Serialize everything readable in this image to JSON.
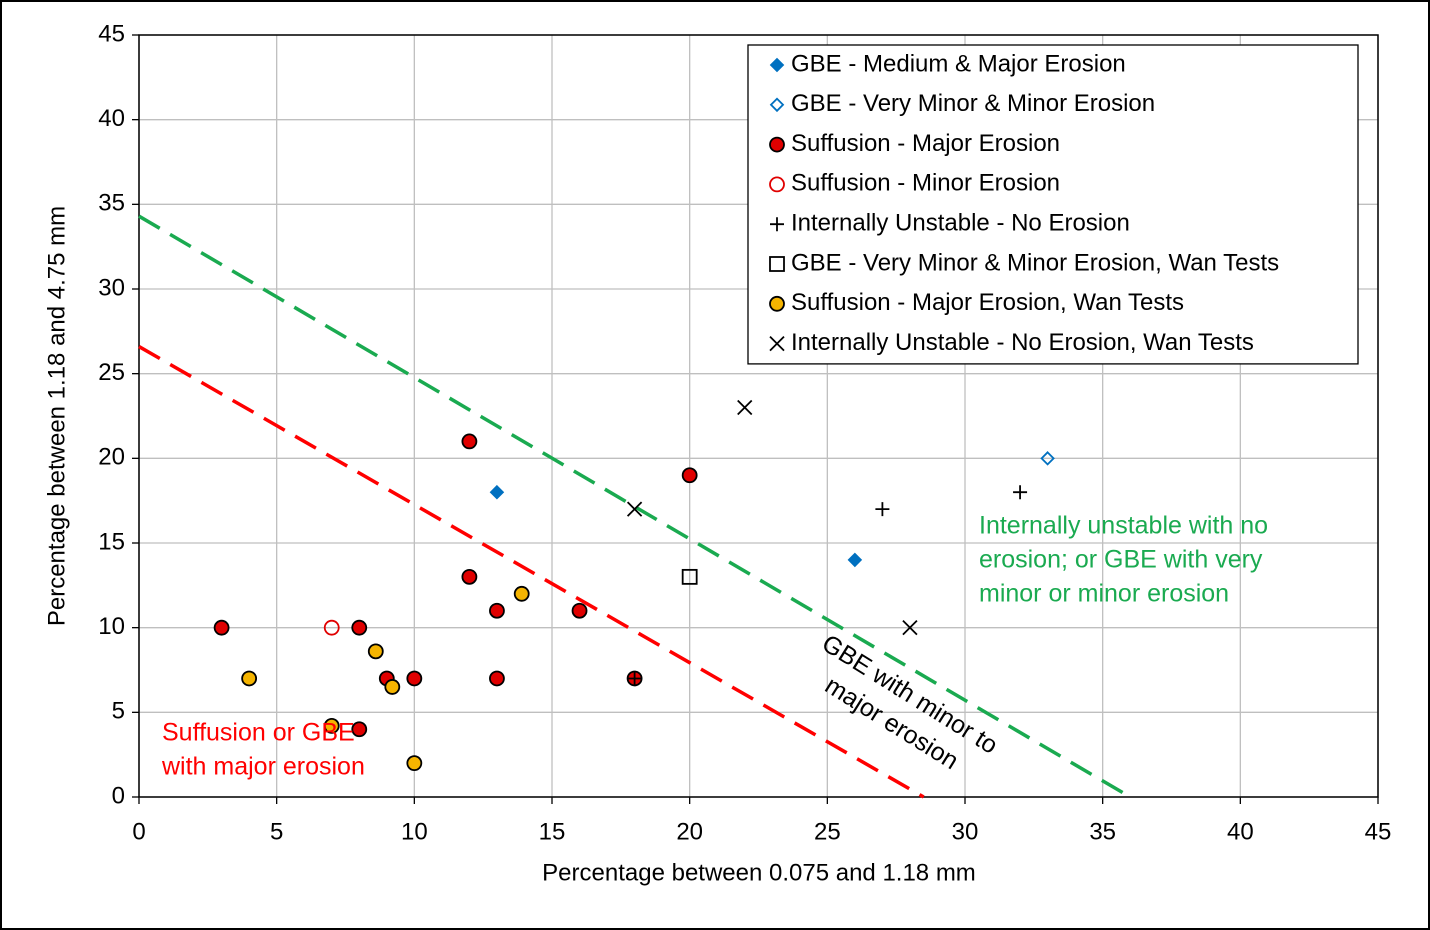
{
  "chart_data": {
    "type": "scatter",
    "x_label": "Percentage between 0.075 and 1.18 mm",
    "y_label": "Percentage between 1.18 and 4.75 mm",
    "xlim": [
      0,
      45
    ],
    "ylim": [
      0,
      45
    ],
    "xticks": [
      0,
      5,
      10,
      15,
      20,
      25,
      30,
      35,
      40,
      45
    ],
    "yticks": [
      0,
      5,
      10,
      15,
      20,
      25,
      30,
      35,
      40,
      45
    ],
    "grid": true,
    "legend": "upper right",
    "series": [
      {
        "name": "GBE - Medium & Major Erosion",
        "marker": "diamond",
        "color": "#0070c0",
        "fill": "#0070c0",
        "x": [
          13,
          26
        ],
        "y": [
          18,
          14
        ]
      },
      {
        "name": "GBE - Very Minor & Minor Erosion",
        "marker": "diamond",
        "color": "#0070c0",
        "fill": "none",
        "x": [
          33
        ],
        "y": [
          20
        ]
      },
      {
        "name": "Suffusion - Major Erosion",
        "marker": "circle",
        "color": "#000000",
        "fill": "#e00000",
        "x": [
          3,
          8,
          9,
          10,
          12,
          12,
          13,
          13,
          16,
          18,
          20,
          8
        ],
        "y": [
          10,
          10,
          7,
          7,
          21,
          13,
          11,
          7,
          11,
          7,
          19,
          4
        ]
      },
      {
        "name": "Suffusion - Minor Erosion",
        "marker": "circle",
        "color": "#e00000",
        "fill": "none",
        "x": [
          7
        ],
        "y": [
          10
        ]
      },
      {
        "name": "Internally Unstable - No Erosion",
        "marker": "plus",
        "color": "#000000",
        "fill": "none",
        "x": [
          27,
          32,
          18
        ],
        "y": [
          17,
          18,
          7
        ]
      },
      {
        "name": "GBE - Very Minor & Minor Erosion, Wan Tests",
        "marker": "square",
        "color": "#000000",
        "fill": "none",
        "x": [
          20
        ],
        "y": [
          13
        ]
      },
      {
        "name": "Suffusion - Major Erosion, Wan Tests",
        "marker": "circle",
        "color": "#000000",
        "fill": "#f5b400",
        "x": [
          4,
          7,
          8.6,
          9.2,
          10,
          13.9
        ],
        "y": [
          7,
          4.2,
          8.6,
          6.5,
          2,
          12
        ]
      },
      {
        "name": "Internally Unstable - No Erosion, Wan Tests",
        "marker": "cross",
        "color": "#000000",
        "fill": "none",
        "x": [
          22,
          18,
          28
        ],
        "y": [
          23,
          17,
          10
        ]
      }
    ],
    "lines": [
      {
        "color": "#1aaa50",
        "x": [
          0,
          36
        ],
        "y": [
          34.3,
          0
        ]
      },
      {
        "color": "#ff0000",
        "x": [
          0,
          28.5
        ],
        "y": [
          26.6,
          0
        ]
      }
    ],
    "annotations": [
      {
        "color": "#1aaa50",
        "lines": [
          "Internally unstable with no",
          "erosion; or GBE with very",
          "minor or minor erosion"
        ]
      },
      {
        "color": "#ff0000",
        "lines": [
          "Suffusion or GBE",
          "with major erosion"
        ]
      },
      {
        "color": "#000000",
        "lines": [
          "GBE with minor to",
          "major erosion"
        ]
      }
    ]
  }
}
